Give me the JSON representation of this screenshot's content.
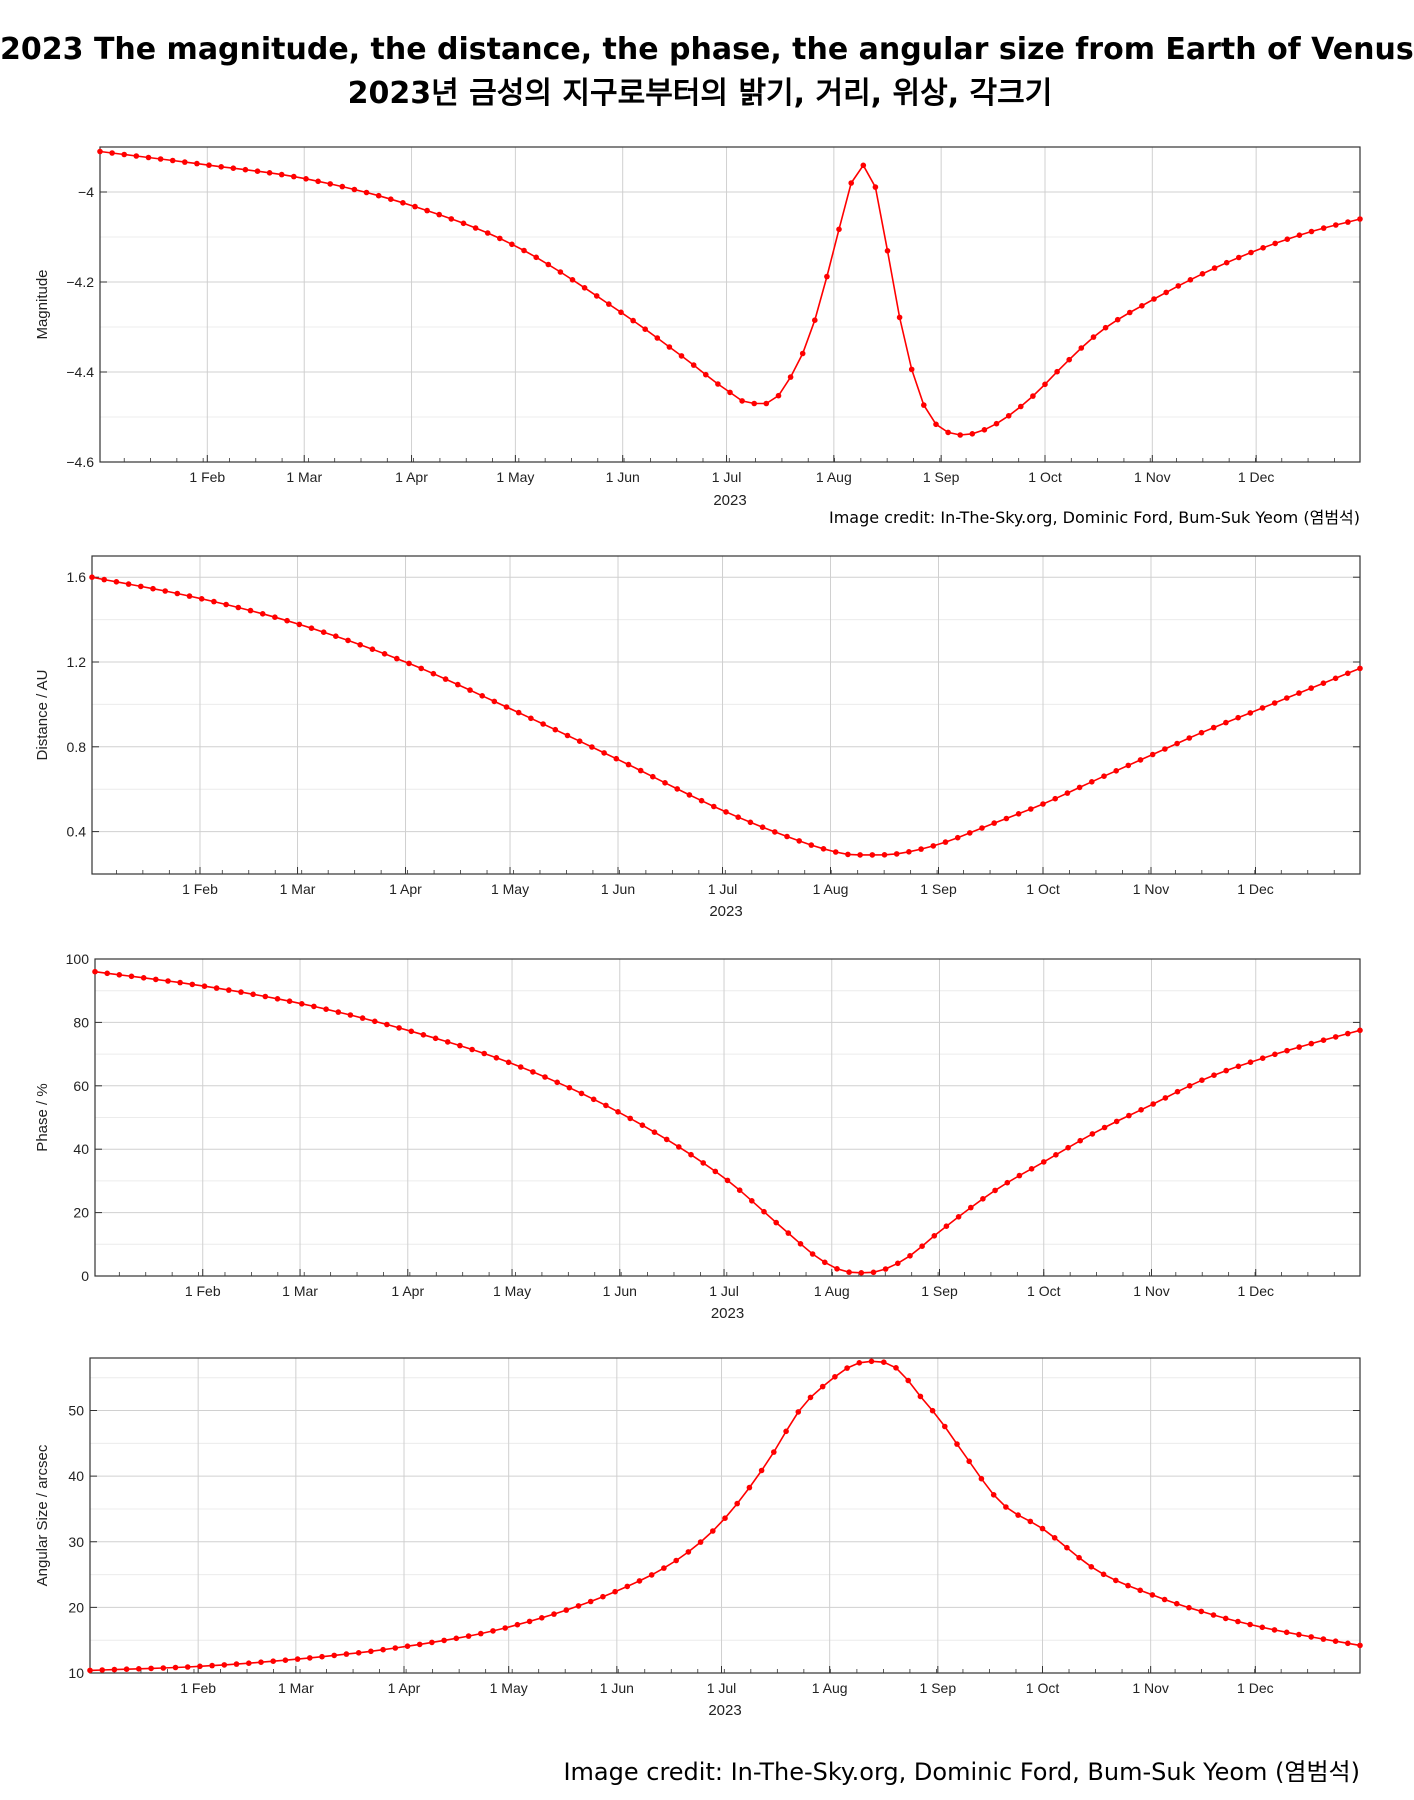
{
  "titles": [
    "2023 The magnitude, the distance, the phase, the angular size from Earth of Venus",
    "2023년 금성의 지구로부터의 밝기, 거리, 위상, 각크기"
  ],
  "credit_small": "Image credit: In-The-Sky.org, Dominic Ford, Bum-Suk Yeom (염범석)",
  "credit_large": "Image credit: In-The-Sky.org, Dominic Ford, Bum-Suk Yeom (염범석)",
  "style": {
    "series_color": "#ff0000",
    "grid_color": "#d0d0d0",
    "frame_color": "#333333"
  },
  "chart_data": [
    {
      "type": "line",
      "ylabel": "Magnitude",
      "xlabel": "2023",
      "x_unit": "day of year 2023",
      "xlim": [
        1,
        365
      ],
      "ylim": [
        -4.6,
        -3.9
      ],
      "y_ticks": [
        -4.6,
        -4.4,
        -4.2,
        -4.0
      ],
      "y_tick_labels": [
        "−4.6",
        "−4.4",
        "−4.2",
        "−4"
      ],
      "x_ticks": [
        32,
        60,
        91,
        121,
        152,
        182,
        213,
        244,
        274,
        305,
        335
      ],
      "x_tick_labels": [
        "1 Feb",
        "1 Mar",
        "1 Apr",
        "1 May",
        "1 Jun",
        "1 Jul",
        "1 Aug",
        "1 Sep",
        "1 Oct",
        "1 Nov",
        "1 Dec"
      ],
      "grid": true,
      "series": [
        {
          "x": [
            1,
            32,
            60,
            91,
            121,
            152,
            170,
            182,
            189,
            194,
            199,
            206,
            213,
            218,
            222,
            226,
            230,
            235,
            240,
            245,
            250,
            256,
            263,
            271,
            280,
            290,
            305,
            320,
            335,
            350,
            365
          ],
          "y": [
            -3.91,
            -3.94,
            -3.97,
            -4.03,
            -4.12,
            -4.27,
            -4.37,
            -4.44,
            -4.47,
            -4.47,
            -4.43,
            -4.32,
            -4.13,
            -3.98,
            -3.94,
            -4.02,
            -4.2,
            -4.38,
            -4.49,
            -4.53,
            -4.54,
            -4.53,
            -4.5,
            -4.45,
            -4.38,
            -4.31,
            -4.24,
            -4.18,
            -4.13,
            -4.09,
            -4.06
          ]
        }
      ]
    },
    {
      "type": "line",
      "ylabel": "Distance / AU",
      "xlabel": "2023",
      "x_unit": "day of year 2023",
      "xlim": [
        1,
        365
      ],
      "ylim": [
        0.2,
        1.7
      ],
      "y_ticks": [
        0.4,
        0.8,
        1.2,
        1.6
      ],
      "y_tick_labels": [
        "0.4",
        "0.8",
        "1.2",
        "1.6"
      ],
      "x_ticks": [
        32,
        60,
        91,
        121,
        152,
        182,
        213,
        244,
        274,
        305,
        335
      ],
      "x_tick_labels": [
        "1 Feb",
        "1 Mar",
        "1 Apr",
        "1 May",
        "1 Jun",
        "1 Jul",
        "1 Aug",
        "1 Sep",
        "1 Oct",
        "1 Nov",
        "1 Dec"
      ],
      "grid": true,
      "series": [
        {
          "x": [
            1,
            32,
            60,
            91,
            121,
            152,
            182,
            200,
            213,
            220,
            226,
            232,
            244,
            260,
            274,
            290,
            305,
            320,
            335,
            350,
            365
          ],
          "y": [
            1.6,
            1.5,
            1.38,
            1.2,
            0.98,
            0.74,
            0.5,
            0.38,
            0.31,
            0.29,
            0.29,
            0.295,
            0.34,
            0.44,
            0.53,
            0.65,
            0.76,
            0.87,
            0.97,
            1.07,
            1.17
          ]
        }
      ]
    },
    {
      "type": "line",
      "ylabel": "Phase / %",
      "xlabel": "2023",
      "x_unit": "day of year 2023",
      "xlim": [
        1,
        365
      ],
      "ylim": [
        0,
        100
      ],
      "y_ticks": [
        0,
        20,
        40,
        60,
        80,
        100
      ],
      "y_tick_labels": [
        "0",
        "20",
        "40",
        "60",
        "80",
        "100"
      ],
      "x_ticks": [
        32,
        60,
        91,
        121,
        152,
        182,
        213,
        244,
        274,
        305,
        335
      ],
      "x_tick_labels": [
        "1 Feb",
        "1 Mar",
        "1 Apr",
        "1 May",
        "1 Jun",
        "1 Jul",
        "1 Aug",
        "1 Sep",
        "1 Oct",
        "1 Nov",
        "1 Dec"
      ],
      "grid": true,
      "series": [
        {
          "x": [
            1,
            32,
            60,
            91,
            121,
            152,
            182,
            200,
            210,
            218,
            223,
            228,
            235,
            244,
            260,
            274,
            290,
            305,
            320,
            335,
            350,
            365
          ],
          "y": [
            96,
            91.5,
            86,
            77.5,
            67,
            51.5,
            31,
            14,
            5,
            1.2,
            1,
            2,
            6,
            14,
            27,
            36,
            46,
            54,
            62,
            68,
            73,
            77.5
          ]
        }
      ]
    },
    {
      "type": "line",
      "ylabel": "Angular Size / arcsec",
      "xlabel": "2023",
      "x_unit": "day of year 2023",
      "xlim": [
        1,
        365
      ],
      "ylim": [
        10,
        58
      ],
      "y_ticks": [
        10,
        20,
        30,
        40,
        50
      ],
      "y_tick_labels": [
        "10",
        "20",
        "30",
        "40",
        "50"
      ],
      "x_ticks": [
        32,
        60,
        91,
        121,
        152,
        182,
        213,
        244,
        274,
        305,
        335
      ],
      "x_tick_labels": [
        "1 Feb",
        "1 Mar",
        "1 Apr",
        "1 May",
        "1 Jun",
        "1 Jul",
        "1 Aug",
        "1 Sep",
        "1 Oct",
        "1 Nov",
        "1 Dec"
      ],
      "grid": true,
      "series": [
        {
          "x": [
            1,
            32,
            60,
            91,
            121,
            152,
            170,
            182,
            195,
            205,
            213,
            220,
            226,
            232,
            240,
            244,
            252,
            262,
            274,
            290,
            305,
            320,
            335,
            350,
            365
          ],
          "y": [
            10.4,
            11,
            12.1,
            14,
            17,
            22.5,
            27.5,
            33,
            42,
            50.5,
            54.5,
            57,
            57.5,
            56.5,
            51.5,
            49,
            43,
            36,
            32,
            25.5,
            22,
            19.3,
            17.2,
            15.6,
            14.2
          ]
        }
      ]
    }
  ]
}
